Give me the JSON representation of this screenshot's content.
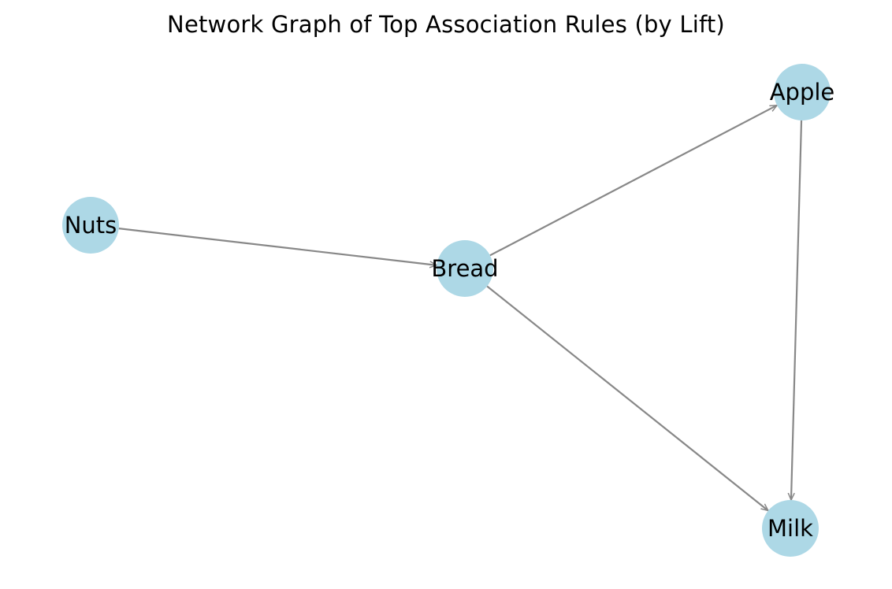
{
  "title": "Network Graph of Top Association Rules (by Lift)",
  "colors": {
    "node_fill": "#add8e6",
    "edge_stroke": "#888888",
    "label": "#000000",
    "background": "#ffffff"
  },
  "nodes": [
    {
      "id": "apple",
      "label": "Apple"
    },
    {
      "id": "nuts",
      "label": "Nuts"
    },
    {
      "id": "bread",
      "label": "Bread"
    },
    {
      "id": "milk",
      "label": "Milk"
    }
  ],
  "edges": [
    {
      "from": "nuts",
      "to": "bread"
    },
    {
      "from": "bread",
      "to": "apple"
    },
    {
      "from": "bread",
      "to": "milk"
    },
    {
      "from": "apple",
      "to": "milk"
    }
  ]
}
